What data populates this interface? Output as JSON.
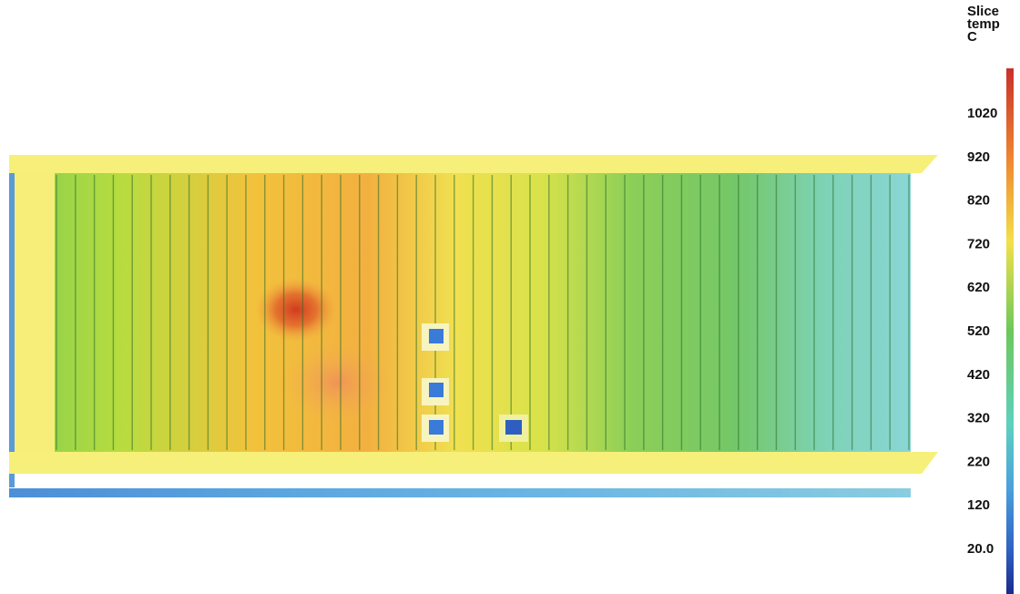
{
  "colorbar": {
    "title": [
      "Slice",
      "temp",
      "C"
    ],
    "labels": [
      "1020",
      "920",
      "820",
      "720",
      "620",
      "520",
      "420",
      "320",
      "220",
      "120",
      "20.0"
    ]
  }
}
